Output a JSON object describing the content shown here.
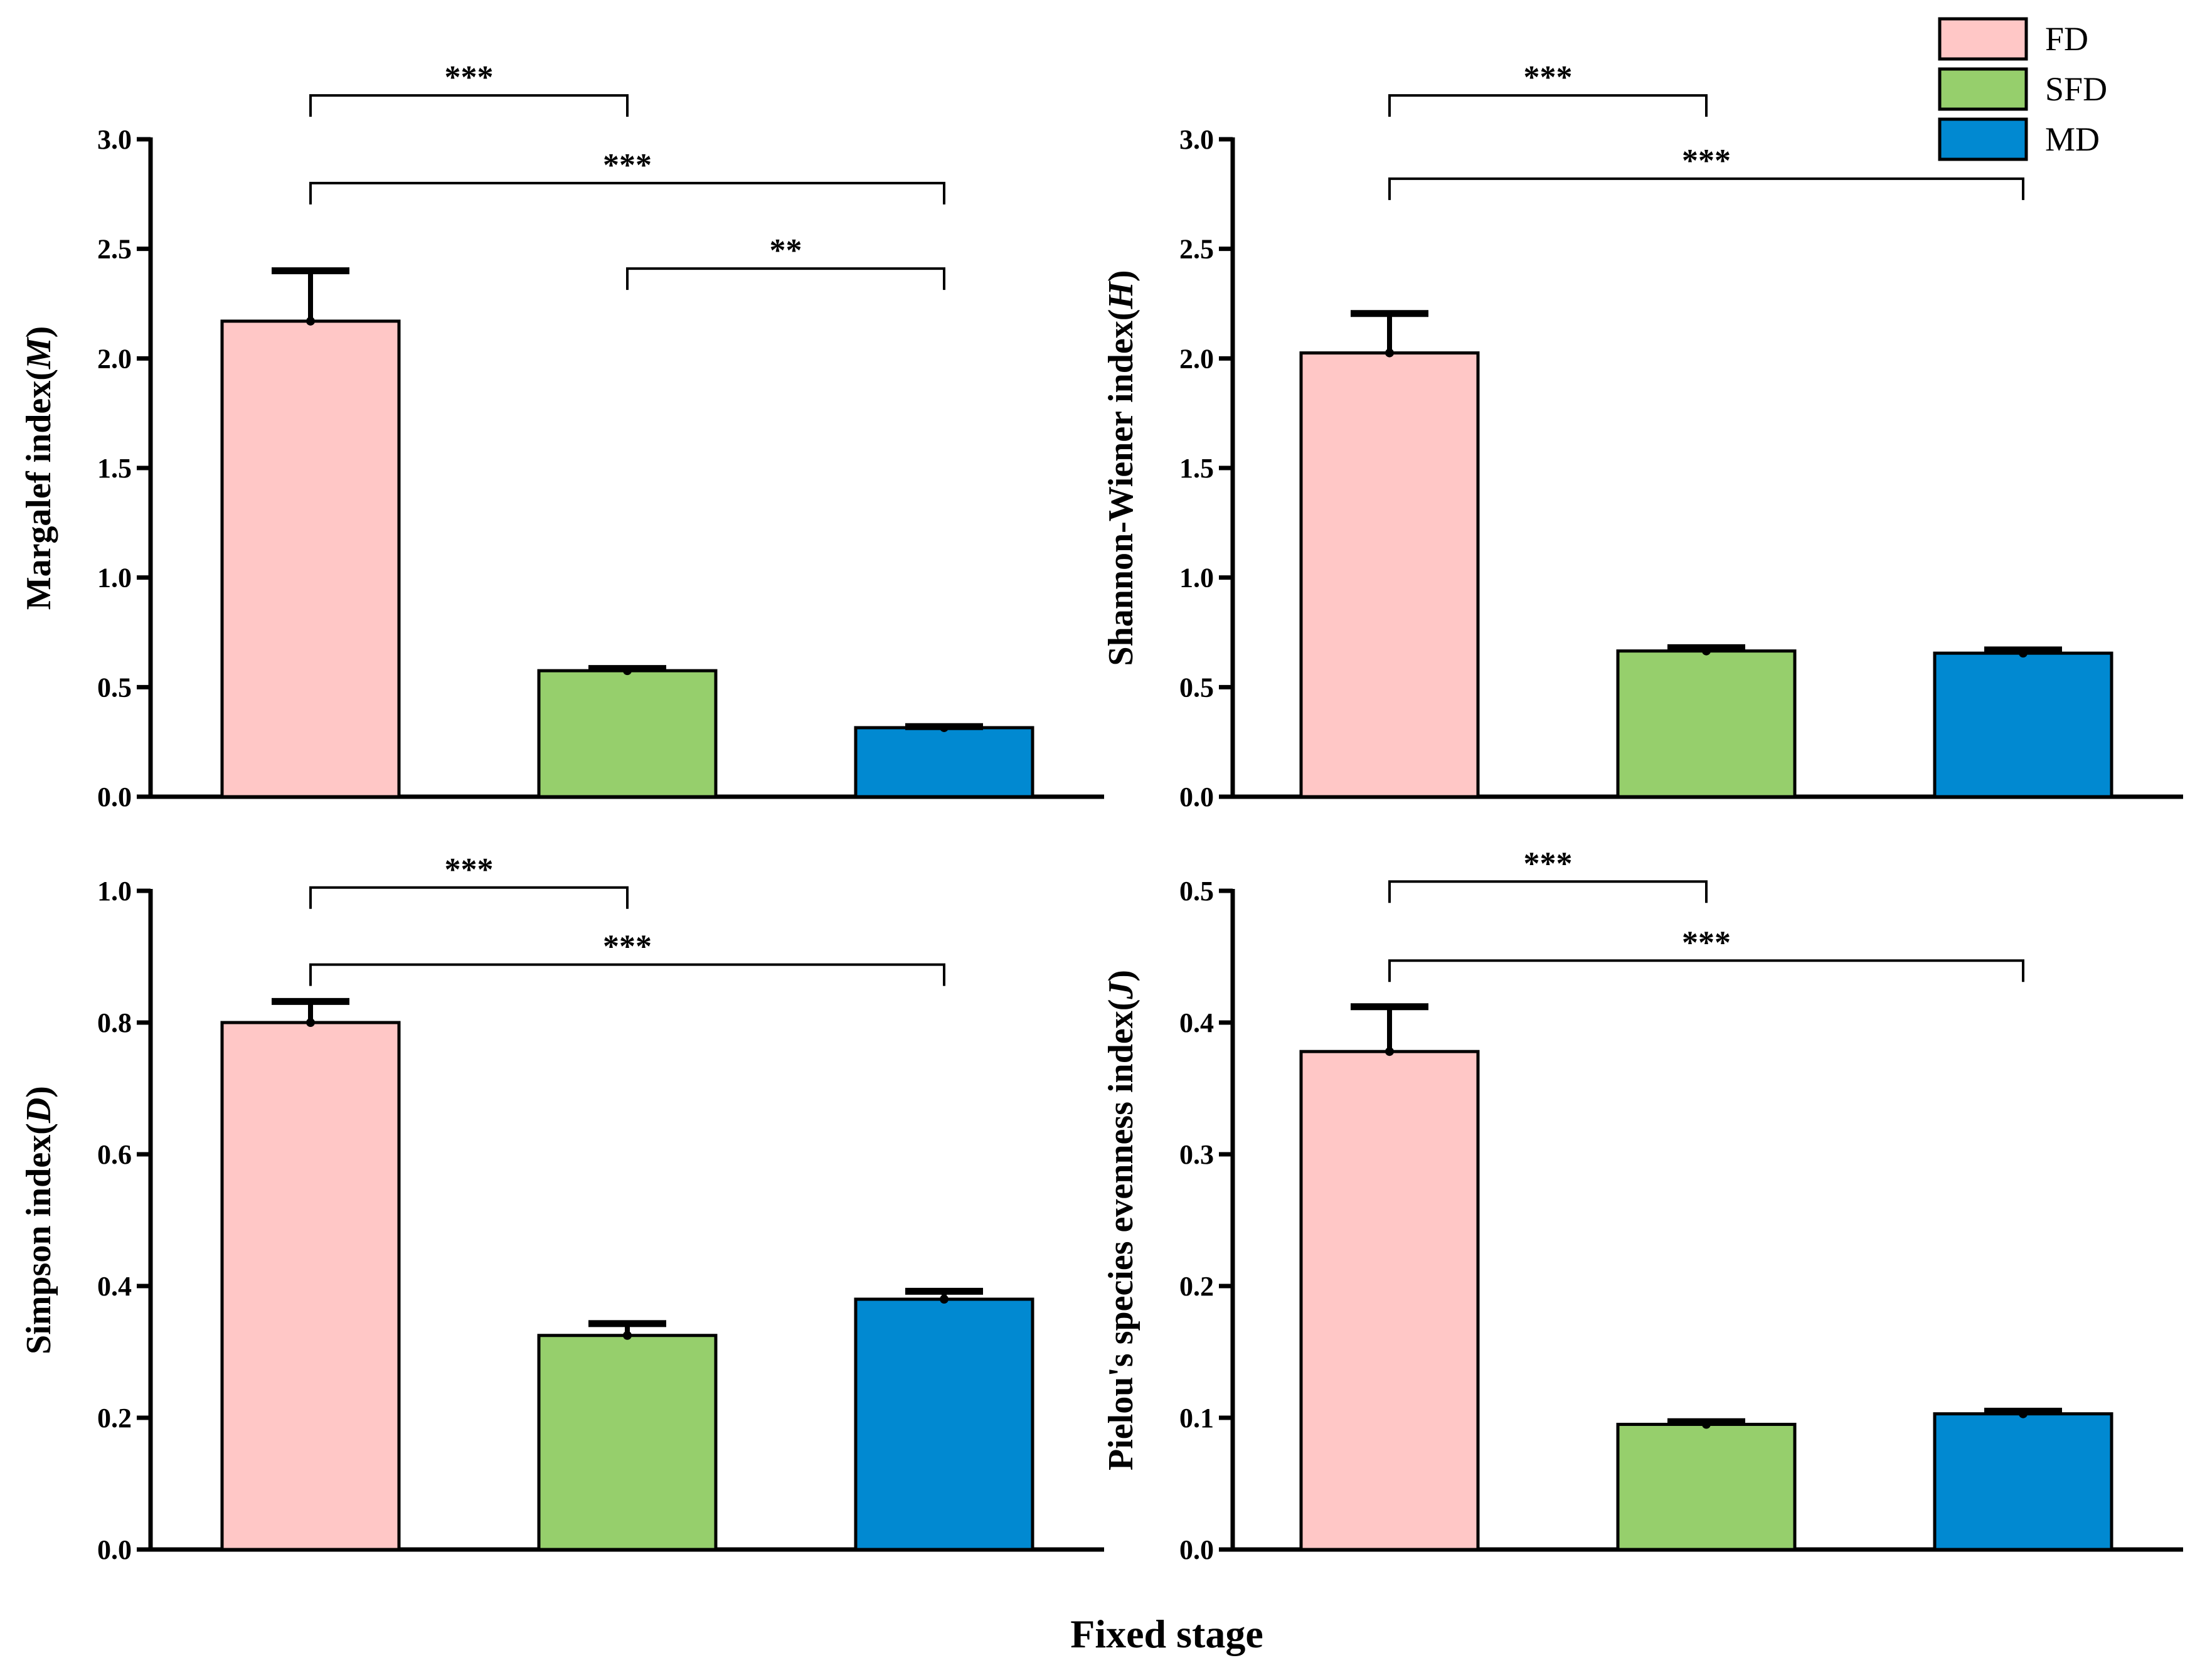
{
  "xlabel": "Fixed stage",
  "colors": {
    "FD": "#ffc7c6",
    "SFD": "#96cf6c",
    "MD": "#0189d1"
  },
  "legend": {
    "placement": "top-right",
    "entries": [
      {
        "label": "FD",
        "color": "#ffc7c6"
      },
      {
        "label": "SFD",
        "color": "#96cf6c"
      },
      {
        "label": "MD",
        "color": "#0189d1"
      }
    ]
  },
  "chart_data": [
    {
      "type": "bar",
      "panel": "top-left",
      "categories": [
        "FD",
        "SFD",
        "MD"
      ],
      "values": [
        2.17,
        0.575,
        0.315
      ],
      "errors": [
        0.23,
        0.01,
        0.005
      ],
      "ylabel_main": "Margalef index(",
      "ylabel_italic": "M",
      "ylabel_end": ")",
      "ylim": [
        0,
        3.0
      ],
      "yticks": [
        "0.0",
        "0.5",
        "1.0",
        "1.5",
        "2.0",
        "2.5",
        "3.0"
      ],
      "significance": [
        {
          "from": 0,
          "to": 1,
          "label": "***",
          "level": 3.2
        },
        {
          "from": 0,
          "to": 2,
          "label": "***",
          "level": 2.8
        },
        {
          "from": 1,
          "to": 2,
          "label": "**",
          "level": 2.41
        }
      ]
    },
    {
      "type": "bar",
      "panel": "top-right",
      "categories": [
        "FD",
        "SFD",
        "MD"
      ],
      "values": [
        2.025,
        0.665,
        0.655
      ],
      "errors": [
        0.18,
        0.015,
        0.015
      ],
      "ylabel_main": "Shannon-Wiener index(",
      "ylabel_italic": "H",
      "ylabel_end": ")",
      "ylim": [
        0,
        3.0
      ],
      "yticks": [
        "0.0",
        "0.5",
        "1.0",
        "1.5",
        "2.0",
        "2.5",
        "3.0"
      ],
      "significance": [
        {
          "from": 0,
          "to": 1,
          "label": "***",
          "level": 3.2
        },
        {
          "from": 0,
          "to": 2,
          "label": "***",
          "level": 2.82
        }
      ]
    },
    {
      "type": "bar",
      "panel": "bottom-left",
      "categories": [
        "FD",
        "SFD",
        "MD"
      ],
      "values": [
        0.8,
        0.325,
        0.38
      ],
      "errors": [
        0.032,
        0.018,
        0.012
      ],
      "ylabel_main": "Simpson index(",
      "ylabel_italic": "D",
      "ylabel_end": ")",
      "ylim": [
        0,
        1.0
      ],
      "yticks": [
        "0.0",
        "0.2",
        "0.4",
        "0.6",
        "0.8",
        "1.0"
      ],
      "significance": [
        {
          "from": 0,
          "to": 1,
          "label": "***",
          "level": 1.005
        },
        {
          "from": 0,
          "to": 2,
          "label": "***",
          "level": 0.888
        }
      ]
    },
    {
      "type": "bar",
      "panel": "bottom-right",
      "categories": [
        "FD",
        "SFD",
        "MD"
      ],
      "values": [
        0.378,
        0.095,
        0.103
      ],
      "errors": [
        0.034,
        0.002,
        0.002
      ],
      "ylabel_main": "Pielou's species evenness index(",
      "ylabel_italic": "J",
      "ylabel_end": ")",
      "ylim": [
        0,
        0.5
      ],
      "yticks": [
        "0.0",
        "0.1",
        "0.2",
        "0.3",
        "0.4",
        "0.5"
      ],
      "significance": [
        {
          "from": 0,
          "to": 1,
          "label": "***",
          "level": 0.507
        },
        {
          "from": 0,
          "to": 2,
          "label": "***",
          "level": 0.447
        }
      ]
    }
  ]
}
